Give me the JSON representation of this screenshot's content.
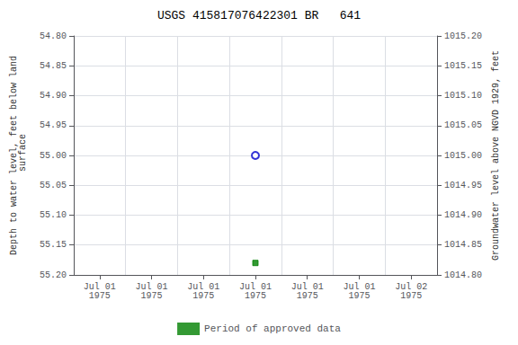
{
  "chart_data": {
    "type": "scatter",
    "title": "USGS 415817076422301 BR   641",
    "ylabel": "Depth to water level, feet below land\n surface",
    "y2label": "Groundwater level above NGVD 1929, feet",
    "categories": [
      "Jul 01\n1975",
      "Jul 01\n1975",
      "Jul 01\n1975",
      "Jul 01\n1975",
      "Jul 01\n1975",
      "Jul 01\n1975",
      "Jul 02\n1975"
    ],
    "series": [
      {
        "color": "#0000cc",
        "marker": "open_circle",
        "values": [
          null,
          null,
          null,
          55.0,
          null,
          null,
          null
        ]
      },
      {
        "name": "Period of approved data",
        "color": "#008000",
        "marker": "square",
        "values": [
          null,
          null,
          null,
          55.18,
          null,
          null,
          null
        ]
      }
    ],
    "ylim": [
      55.2,
      54.8
    ],
    "yticks": [
      {
        "value": 54.8,
        "label": "54.80"
      },
      {
        "value": 54.85,
        "label": "54.85"
      },
      {
        "value": 54.9,
        "label": "54.90"
      },
      {
        "value": 54.95,
        "label": "54.95"
      },
      {
        "value": 55.0,
        "label": "55.00"
      },
      {
        "value": 55.05,
        "label": "55.05"
      },
      {
        "value": 55.1,
        "label": "55.10"
      },
      {
        "value": 55.15,
        "label": "55.15"
      },
      {
        "value": 55.2,
        "label": "55.20"
      }
    ],
    "y2lim": [
      1014.8,
      1015.2
    ],
    "y2ticks": [
      {
        "value": 1015.2,
        "label": "1015.20"
      },
      {
        "value": 1015.15,
        "label": "1015.15"
      },
      {
        "value": 1015.1,
        "label": "1015.10"
      },
      {
        "value": 1015.05,
        "label": "1015.05"
      },
      {
        "value": 1015.0,
        "label": "1015.00"
      },
      {
        "value": 1014.95,
        "label": "1014.95"
      },
      {
        "value": 1014.9,
        "label": "1014.90"
      },
      {
        "value": 1014.85,
        "label": "1014.85"
      },
      {
        "value": 1014.8,
        "label": "1014.80"
      }
    ],
    "grid": true,
    "legend": "bottom"
  }
}
